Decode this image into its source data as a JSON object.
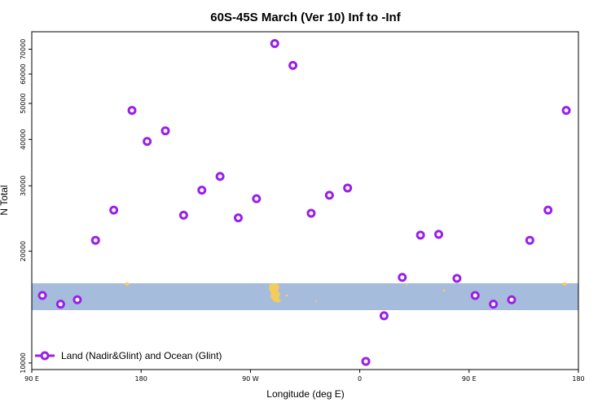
{
  "chart_data": {
    "type": "scatter",
    "title": "60S-45S March (Ver 10)   Inf to -Inf",
    "xlabel": "Longitude (deg E)",
    "ylabel": "N Total",
    "x_ticks": [
      "90 E",
      "180",
      "90 W",
      "0",
      "90 E",
      "180"
    ],
    "y_ticks": [
      "10000",
      "20000",
      "30000",
      "40000",
      "50000",
      "60000",
      "70000"
    ],
    "y_scale": "log",
    "xlim": [
      90,
      450
    ],
    "ylim": [
      9600,
      78000
    ],
    "grid": false,
    "legend": {
      "placement": "bottom-left",
      "entries": [
        "Land (Nadir&Glint) and Ocean (Glint)"
      ]
    },
    "colors": {
      "series": "#9b1fe8",
      "map_band": "#a6bcdc",
      "land": "#f5cc5a"
    },
    "series": [
      {
        "name": "Land (Nadir&Glint) and Ocean (Glint)",
        "x": [
          97,
          109,
          120,
          132,
          144,
          156,
          166,
          178,
          190,
          202,
          214,
          226,
          238,
          250,
          262,
          274,
          286,
          298,
          310,
          322,
          334,
          346,
          358,
          370,
          382,
          394,
          406,
          418,
          430,
          442
        ],
        "y": [
          15200,
          14400,
          14800,
          21400,
          25800,
          47900,
          39500,
          42200,
          25000,
          29200,
          31800,
          24600,
          27700,
          72500,
          63300,
          25300,
          28300,
          29600,
          10100,
          13400,
          17000,
          22100,
          22200,
          16900,
          15200,
          14400,
          14800,
          21400,
          25800,
          47900
        ]
      }
    ]
  }
}
